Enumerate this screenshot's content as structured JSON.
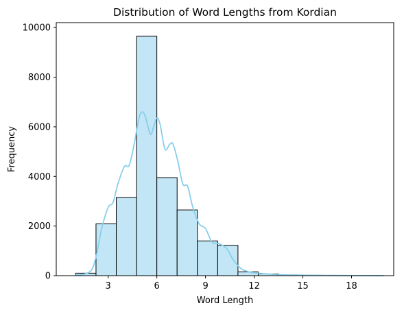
{
  "chart_data": {
    "type": "bar",
    "title": "Distribution of Word Lengths from Kordian",
    "xlabel": "Word Length",
    "ylabel": "Frequency",
    "xlim": [
      -0.2,
      20.6
    ],
    "ylim": [
      0,
      10200
    ],
    "x_ticks": [
      3,
      6,
      9,
      12,
      15,
      18
    ],
    "y_ticks": [
      0,
      2000,
      4000,
      6000,
      8000,
      10000
    ],
    "bins": [
      {
        "x0": 1.0,
        "x1": 2.25,
        "count": 100
      },
      {
        "x0": 2.25,
        "x1": 3.5,
        "count": 2090
      },
      {
        "x0": 3.5,
        "x1": 4.75,
        "count": 3150
      },
      {
        "x0": 4.75,
        "x1": 6.0,
        "count": 9650
      },
      {
        "x0": 6.0,
        "x1": 7.25,
        "count": 3950
      },
      {
        "x0": 7.25,
        "x1": 8.5,
        "count": 2650
      },
      {
        "x0": 8.5,
        "x1": 9.75,
        "count": 1400
      },
      {
        "x0": 9.75,
        "x1": 11.0,
        "count": 1220
      },
      {
        "x0": 11.0,
        "x1": 12.25,
        "count": 150
      },
      {
        "x0": 12.25,
        "x1": 13.5,
        "count": 70
      },
      {
        "x0": 13.5,
        "x1": 14.75,
        "count": 30
      },
      {
        "x0": 14.75,
        "x1": 16.0,
        "count": 15
      },
      {
        "x0": 16.0,
        "x1": 17.25,
        "count": 8
      },
      {
        "x0": 17.25,
        "x1": 18.5,
        "count": 5
      },
      {
        "x0": 18.5,
        "x1": 19.75,
        "count": 3
      }
    ],
    "kde": {
      "x": [
        1.0,
        1.5,
        2.0,
        2.3,
        2.6,
        3.0,
        3.3,
        3.6,
        4.0,
        4.3,
        4.6,
        4.9,
        5.1,
        5.3,
        5.6,
        5.8,
        6.0,
        6.2,
        6.5,
        6.8,
        7.0,
        7.3,
        7.6,
        7.9,
        8.2,
        8.6,
        9.0,
        9.4,
        9.8,
        10.3,
        10.7,
        11.2,
        11.7,
        12.2,
        12.8,
        13.5,
        14.5,
        15.5,
        16.5,
        17.5,
        18.5,
        19.5,
        20.0
      ],
      "y": [
        20,
        60,
        250,
        900,
        1900,
        2750,
        2950,
        3700,
        4400,
        4450,
        5300,
        6350,
        6600,
        6400,
        5700,
        6000,
        6350,
        6100,
        5100,
        5300,
        5300,
        4600,
        3700,
        3600,
        2800,
        2100,
        1900,
        1350,
        1300,
        1100,
        650,
        280,
        150,
        100,
        70,
        40,
        25,
        15,
        10,
        5,
        3,
        2,
        1
      ],
      "color": "#87ceeb"
    },
    "bar_fill": "#c2e6f5",
    "bar_edge": "#000000",
    "grid": false,
    "legend": "none"
  }
}
